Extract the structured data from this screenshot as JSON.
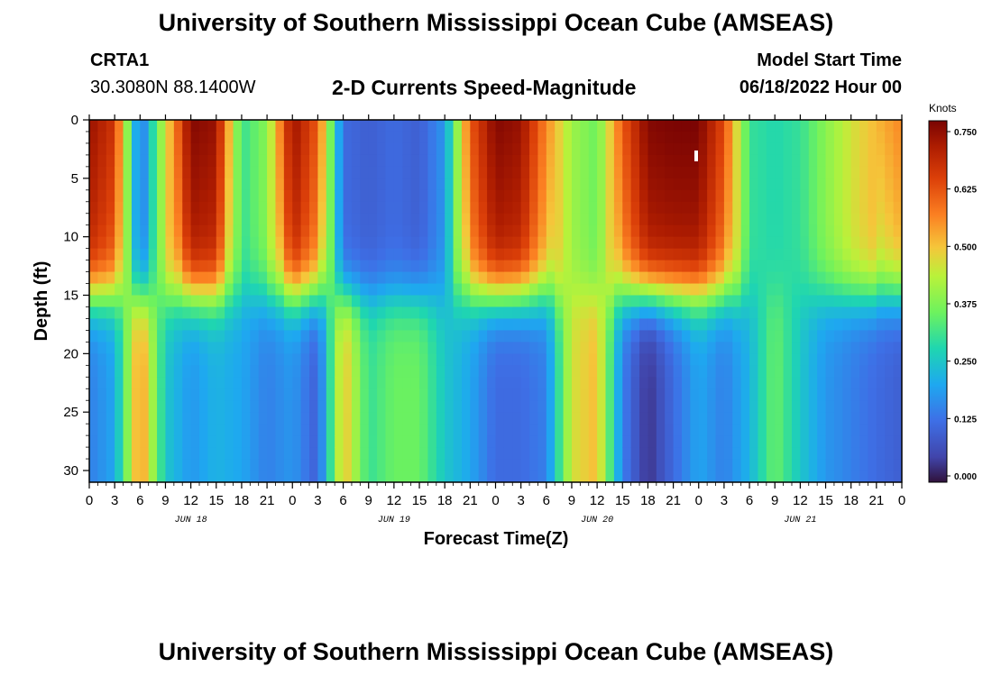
{
  "header": {
    "title": "University of Southern Mississippi Ocean Cube (AMSEAS)",
    "station_id": "CRTA1",
    "station_coords": "30.3080N  88.1400W",
    "plot_title": "2-D Currents Speed-Magnitude",
    "model_start_label": "Model Start Time",
    "model_start_value": "06/18/2022 Hour 00"
  },
  "footer": {
    "title": "University of Southern Mississippi Ocean Cube (AMSEAS)"
  },
  "colorbar": {
    "unit": "Knots",
    "range": [
      0.0,
      0.75
    ],
    "tick_labels": [
      "0.000",
      "0.125",
      "0.250",
      "0.375",
      "0.500",
      "0.625",
      "0.750"
    ],
    "tick_values": [
      0.0,
      0.125,
      0.25,
      0.375,
      0.5,
      0.625,
      0.75
    ]
  },
  "chart_data": {
    "type": "heatmap",
    "title": "2-D Currents Speed-Magnitude",
    "xlabel": "Forecast Time(Z)",
    "ylabel": "Depth (ft)",
    "xlim": [
      0,
      96
    ],
    "ylim": [
      31,
      0
    ],
    "x_tick_values": [
      0,
      3,
      6,
      9,
      12,
      15,
      18,
      21,
      24,
      27,
      30,
      33,
      36,
      39,
      42,
      45,
      48,
      51,
      54,
      57,
      60,
      63,
      66,
      69,
      72,
      75,
      78,
      81,
      84,
      87,
      90,
      93,
      96
    ],
    "x_tick_labels": [
      "0",
      "3",
      "6",
      "9",
      "12",
      "15",
      "18",
      "21",
      "0",
      "3",
      "6",
      "9",
      "12",
      "15",
      "18",
      "21",
      "0",
      "3",
      "6",
      "9",
      "12",
      "15",
      "18",
      "21",
      "0",
      "3",
      "6",
      "9",
      "12",
      "15",
      "18",
      "21",
      "0"
    ],
    "date_labels": [
      "JUN 18",
      "JUN 19",
      "JUN 20",
      "JUN 21"
    ],
    "date_label_hours": [
      12,
      36,
      60,
      84
    ],
    "y_tick_values": [
      0,
      5,
      10,
      15,
      20,
      25,
      30
    ],
    "y_tick_labels": [
      "0",
      "5",
      "10",
      "15",
      "20",
      "25",
      "30"
    ],
    "value_unit": "Knots",
    "value_range": [
      0.0,
      0.75
    ],
    "upper_layer_profile": {
      "hours": [
        0,
        3,
        6,
        9,
        12,
        15,
        18,
        21,
        24,
        27,
        30,
        33,
        36,
        39,
        42,
        45,
        48,
        51,
        54,
        57,
        60,
        63,
        66,
        69,
        72,
        75,
        78,
        81,
        84,
        87,
        90,
        93,
        96
      ],
      "speed": [
        0.72,
        0.65,
        0.12,
        0.45,
        0.74,
        0.72,
        0.3,
        0.38,
        0.72,
        0.6,
        0.12,
        0.1,
        0.12,
        0.1,
        0.18,
        0.6,
        0.74,
        0.72,
        0.55,
        0.4,
        0.35,
        0.6,
        0.74,
        0.75,
        0.75,
        0.62,
        0.3,
        0.28,
        0.3,
        0.38,
        0.45,
        0.5,
        0.55
      ]
    },
    "lower_layer_profile": {
      "hours": [
        0,
        3,
        6,
        9,
        12,
        15,
        18,
        21,
        24,
        27,
        30,
        33,
        36,
        39,
        42,
        45,
        48,
        51,
        54,
        57,
        60,
        63,
        66,
        69,
        72,
        75,
        78,
        81,
        84,
        87,
        90,
        93,
        96
      ],
      "speed": [
        0.15,
        0.2,
        0.55,
        0.25,
        0.18,
        0.22,
        0.2,
        0.15,
        0.18,
        0.1,
        0.5,
        0.3,
        0.35,
        0.35,
        0.25,
        0.2,
        0.12,
        0.12,
        0.15,
        0.45,
        0.5,
        0.15,
        0.03,
        0.12,
        0.2,
        0.15,
        0.22,
        0.35,
        0.25,
        0.18,
        0.15,
        0.12,
        0.1
      ]
    },
    "thermocline_depth_ft": 15
  }
}
